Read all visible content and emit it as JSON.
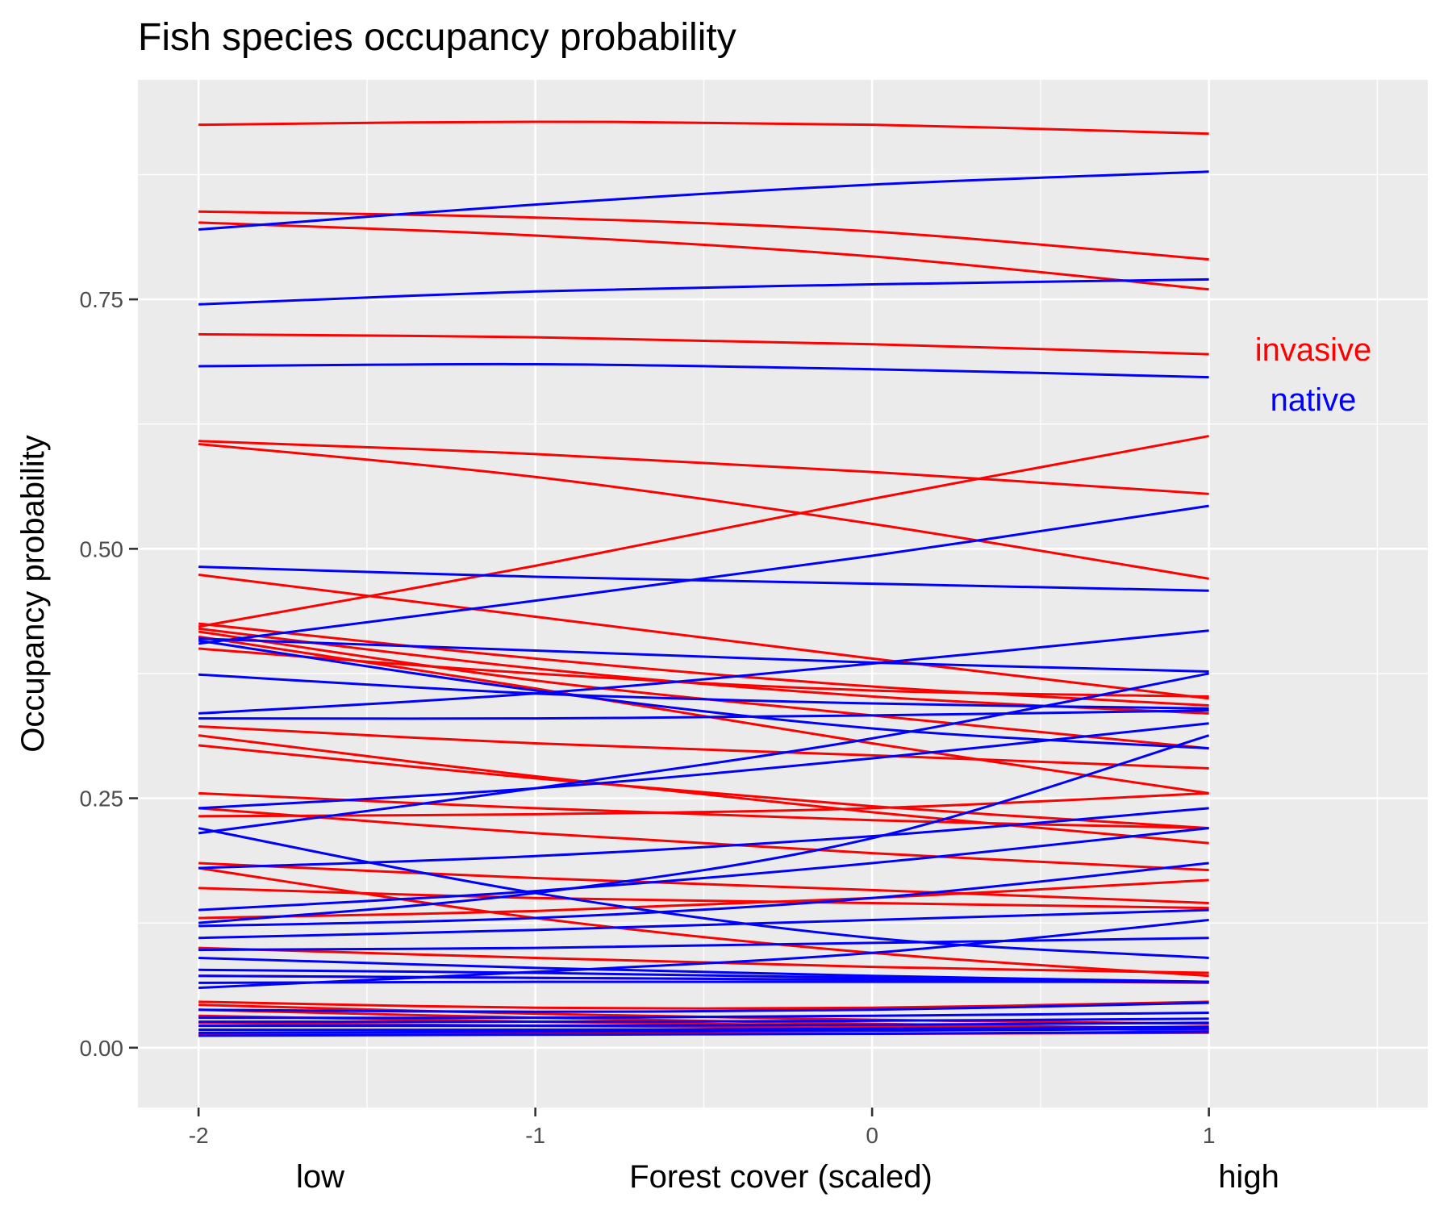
{
  "chart_data": {
    "type": "line",
    "title": "Fish species occupancy probability",
    "xlabel": "Forest cover (scaled)",
    "ylabel": "Occupancy probability",
    "x_end_labels": {
      "low": "low",
      "high": "high"
    },
    "xlim": [
      -2.18,
      1.65
    ],
    "ylim": [
      -0.06,
      0.97
    ],
    "x_ticks": [
      -2,
      -1,
      0,
      1
    ],
    "x_tick_labels": [
      "-2",
      "-1",
      "0",
      "1"
    ],
    "y_ticks": [
      0,
      0.25,
      0.5,
      0.75
    ],
    "y_tick_labels": [
      "0.00",
      "0.25",
      "0.50",
      "0.75"
    ],
    "grid": true,
    "x": [
      -2,
      -1,
      0,
      1
    ],
    "groups": [
      {
        "name": "invasive",
        "color": "#ff0000"
      },
      {
        "name": "native",
        "color": "#0000ff"
      }
    ],
    "series": [
      {
        "group": "invasive",
        "values": [
          0.925,
          0.928,
          0.925,
          0.916
        ]
      },
      {
        "group": "invasive",
        "values": [
          0.838,
          0.832,
          0.818,
          0.79
        ]
      },
      {
        "group": "invasive",
        "values": [
          0.827,
          0.814,
          0.793,
          0.76
        ]
      },
      {
        "group": "invasive",
        "values": [
          0.715,
          0.712,
          0.705,
          0.695
        ]
      },
      {
        "group": "invasive",
        "values": [
          0.608,
          0.595,
          0.577,
          0.555
        ]
      },
      {
        "group": "invasive",
        "values": [
          0.605,
          0.572,
          0.525,
          0.47
        ]
      },
      {
        "group": "invasive",
        "values": [
          0.422,
          0.483,
          0.55,
          0.613
        ]
      },
      {
        "group": "invasive",
        "values": [
          0.474,
          0.432,
          0.39,
          0.35
        ]
      },
      {
        "group": "invasive",
        "values": [
          0.425,
          0.39,
          0.362,
          0.343
        ]
      },
      {
        "group": "invasive",
        "values": [
          0.42,
          0.38,
          0.352,
          0.335
        ]
      },
      {
        "group": "invasive",
        "values": [
          0.417,
          0.368,
          0.333,
          0.3
        ]
      },
      {
        "group": "invasive",
        "values": [
          0.412,
          0.36,
          0.305,
          0.255
        ]
      },
      {
        "group": "invasive",
        "values": [
          0.4,
          0.375,
          0.358,
          0.352
        ]
      },
      {
        "group": "invasive",
        "values": [
          0.322,
          0.305,
          0.293,
          0.28
        ]
      },
      {
        "group": "invasive",
        "values": [
          0.313,
          0.272,
          0.236,
          0.205
        ]
      },
      {
        "group": "invasive",
        "values": [
          0.303,
          0.27,
          0.242,
          0.22
        ]
      },
      {
        "group": "invasive",
        "values": [
          0.255,
          0.24,
          0.228,
          0.22
        ]
      },
      {
        "group": "invasive",
        "values": [
          0.232,
          0.234,
          0.24,
          0.255
        ]
      },
      {
        "group": "invasive",
        "values": [
          0.24,
          0.215,
          0.195,
          0.178
        ]
      },
      {
        "group": "invasive",
        "values": [
          0.185,
          0.17,
          0.158,
          0.145
        ]
      },
      {
        "group": "invasive",
        "values": [
          0.18,
          0.13,
          0.095,
          0.072
        ]
      },
      {
        "group": "invasive",
        "values": [
          0.16,
          0.15,
          0.145,
          0.14
        ]
      },
      {
        "group": "invasive",
        "values": [
          0.13,
          0.137,
          0.15,
          0.168
        ]
      },
      {
        "group": "invasive",
        "values": [
          0.1,
          0.09,
          0.081,
          0.075
        ]
      },
      {
        "group": "invasive",
        "values": [
          0.072,
          0.07,
          0.068,
          0.065
        ]
      },
      {
        "group": "invasive",
        "values": [
          0.046,
          0.04,
          0.04,
          0.046
        ]
      },
      {
        "group": "invasive",
        "values": [
          0.043,
          0.034,
          0.028,
          0.024
        ]
      },
      {
        "group": "invasive",
        "values": [
          0.038,
          0.03,
          0.024,
          0.019
        ]
      },
      {
        "group": "invasive",
        "values": [
          0.032,
          0.026,
          0.022,
          0.017
        ]
      },
      {
        "group": "invasive",
        "values": [
          0.025,
          0.022,
          0.02,
          0.018
        ]
      },
      {
        "group": "invasive",
        "values": [
          0.014,
          0.014,
          0.014,
          0.015
        ]
      },
      {
        "group": "native",
        "values": [
          0.82,
          0.845,
          0.865,
          0.878
        ]
      },
      {
        "group": "native",
        "values": [
          0.745,
          0.758,
          0.765,
          0.77
        ]
      },
      {
        "group": "native",
        "values": [
          0.683,
          0.685,
          0.68,
          0.672
        ]
      },
      {
        "group": "native",
        "values": [
          0.482,
          0.472,
          0.465,
          0.458
        ]
      },
      {
        "group": "native",
        "values": [
          0.405,
          0.448,
          0.493,
          0.543
        ]
      },
      {
        "group": "native",
        "values": [
          0.41,
          0.398,
          0.386,
          0.377
        ]
      },
      {
        "group": "native",
        "values": [
          0.408,
          0.358,
          0.32,
          0.3
        ]
      },
      {
        "group": "native",
        "values": [
          0.335,
          0.355,
          0.385,
          0.418
        ]
      },
      {
        "group": "native",
        "values": [
          0.374,
          0.355,
          0.345,
          0.34
        ]
      },
      {
        "group": "native",
        "values": [
          0.33,
          0.33,
          0.333,
          0.338
        ]
      },
      {
        "group": "native",
        "values": [
          0.24,
          0.26,
          0.29,
          0.325
        ]
      },
      {
        "group": "native",
        "values": [
          0.215,
          0.26,
          0.31,
          0.375
        ]
      },
      {
        "group": "native",
        "values": [
          0.18,
          0.192,
          0.212,
          0.24
        ]
      },
      {
        "group": "native",
        "values": [
          0.138,
          0.157,
          0.185,
          0.22
        ]
      },
      {
        "group": "native",
        "values": [
          0.125,
          0.155,
          0.21,
          0.313
        ]
      },
      {
        "group": "native",
        "values": [
          0.22,
          0.155,
          0.11,
          0.09
        ]
      },
      {
        "group": "native",
        "values": [
          0.122,
          0.13,
          0.15,
          0.185
        ]
      },
      {
        "group": "native",
        "values": [
          0.11,
          0.118,
          0.128,
          0.138
        ]
      },
      {
        "group": "native",
        "values": [
          0.098,
          0.1,
          0.105,
          0.11
        ]
      },
      {
        "group": "native",
        "values": [
          0.09,
          0.08,
          0.072,
          0.066
        ]
      },
      {
        "group": "native",
        "values": [
          0.078,
          0.075,
          0.07,
          0.066
        ]
      },
      {
        "group": "native",
        "values": [
          0.072,
          0.07,
          0.068,
          0.066
        ]
      },
      {
        "group": "native",
        "values": [
          0.065,
          0.066,
          0.066,
          0.066
        ]
      },
      {
        "group": "native",
        "values": [
          0.06,
          0.076,
          0.095,
          0.128
        ]
      },
      {
        "group": "native",
        "values": [
          0.038,
          0.036,
          0.038,
          0.045
        ]
      },
      {
        "group": "native",
        "values": [
          0.03,
          0.03,
          0.032,
          0.035
        ]
      },
      {
        "group": "native",
        "values": [
          0.026,
          0.026,
          0.027,
          0.029
        ]
      },
      {
        "group": "native",
        "values": [
          0.022,
          0.022,
          0.023,
          0.025
        ]
      },
      {
        "group": "native",
        "values": [
          0.018,
          0.018,
          0.019,
          0.021
        ]
      },
      {
        "group": "native",
        "values": [
          0.015,
          0.016,
          0.017,
          0.019
        ]
      },
      {
        "group": "native",
        "values": [
          0.012,
          0.013,
          0.014,
          0.016
        ]
      }
    ]
  }
}
